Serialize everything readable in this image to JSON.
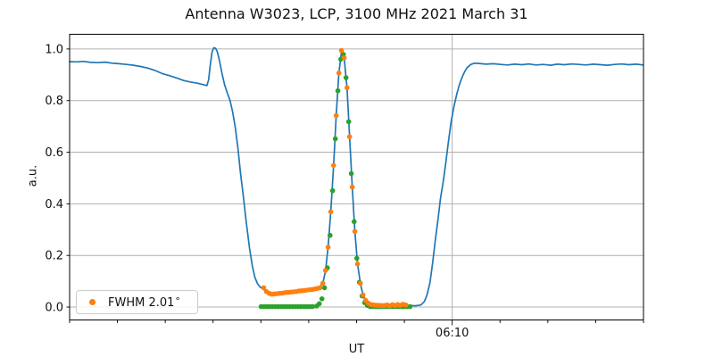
{
  "title": "Antenna W3023, LCP, 3100 MHz 2021 March 31",
  "legend": {
    "label_text": "FWHM 2.01",
    "degree": "°",
    "full_label": "FWHM 2.01°",
    "marker_color": "#ff7f0e"
  },
  "colors": {
    "line": "#1f77b4",
    "data_dots": "#ff7f0e",
    "fit_dots": "#2ca02c",
    "grid": "#b0b0b0",
    "spine": "#000000"
  },
  "chart_data": {
    "type": "line",
    "title": "Antenna W3023, LCP, 3100 MHz 2021 March 31",
    "xlabel": "UT",
    "ylabel": "a.u.",
    "x_unit": "minutes relative to 06:10 UT",
    "xlim": [
      -16.0,
      8.0
    ],
    "ylim": [
      -0.05,
      1.057
    ],
    "grid": true,
    "x_major_tick": {
      "label": "06:10",
      "x": 0
    },
    "x_minor_ticks": [
      -16,
      -14,
      -12,
      -10,
      -8,
      -6,
      -4,
      -2,
      0,
      2,
      4,
      6,
      8
    ],
    "y_ticks": [
      0.0,
      0.2,
      0.4,
      0.6,
      0.8,
      1.0
    ],
    "legend_entry": {
      "series": "data",
      "label": "FWHM 2.01°"
    },
    "series": [
      {
        "name": "antenna-response",
        "type": "line",
        "color": "#1f77b4",
        "x": [
          -16.0,
          -15.71,
          -15.42,
          -15.12,
          -14.82,
          -14.52,
          -14.22,
          -13.92,
          -13.62,
          -13.33,
          -13.03,
          -12.73,
          -12.43,
          -12.13,
          -11.83,
          -11.53,
          -11.23,
          -10.94,
          -10.64,
          -10.41,
          -10.26,
          -10.19,
          -10.12,
          -10.04,
          -9.97,
          -9.89,
          -9.82,
          -9.74,
          -9.63,
          -9.52,
          -9.41,
          -9.29,
          -9.18,
          -9.07,
          -8.96,
          -8.85,
          -8.73,
          -8.62,
          -8.47,
          -8.36,
          -8.25,
          -8.14,
          -8.03,
          -7.88,
          -7.73,
          -7.54,
          -7.28,
          -6.98,
          -6.68,
          -6.38,
          -6.08,
          -5.79,
          -5.56,
          -5.41,
          -5.3,
          -5.19,
          -5.08,
          -4.96,
          -4.85,
          -4.74,
          -4.63,
          -4.59,
          -4.52,
          -4.4,
          -4.29,
          -4.18,
          -4.07,
          -3.96,
          -3.84,
          -3.73,
          -3.62,
          -3.47,
          -3.25,
          -2.95,
          -2.65,
          -2.35,
          -2.05,
          -1.75,
          -1.53,
          -1.31,
          -1.16,
          -1.05,
          -0.93,
          -0.82,
          -0.71,
          -0.6,
          -0.49,
          -0.37,
          -0.26,
          -0.15,
          -0.04,
          0.07,
          0.19,
          0.3,
          0.41,
          0.52,
          0.63,
          0.78,
          0.93,
          1.12,
          1.42,
          1.72,
          2.02,
          2.31,
          2.61,
          2.91,
          3.21,
          3.51,
          3.81,
          4.11,
          4.4,
          4.7,
          5.0,
          5.3,
          5.6,
          5.9,
          6.2,
          6.49,
          6.79,
          7.09,
          7.39,
          7.69,
          7.99
        ],
        "y": [
          0.951,
          0.95,
          0.952,
          0.948,
          0.947,
          0.949,
          0.945,
          0.943,
          0.94,
          0.937,
          0.932,
          0.926,
          0.917,
          0.905,
          0.897,
          0.888,
          0.878,
          0.872,
          0.867,
          0.862,
          0.858,
          0.88,
          0.935,
          0.99,
          1.005,
          1.002,
          0.988,
          0.958,
          0.906,
          0.862,
          0.83,
          0.8,
          0.755,
          0.695,
          0.615,
          0.515,
          0.425,
          0.335,
          0.225,
          0.16,
          0.115,
          0.09,
          0.078,
          0.068,
          0.056,
          0.05,
          0.053,
          0.056,
          0.059,
          0.062,
          0.066,
          0.07,
          0.076,
          0.092,
          0.14,
          0.232,
          0.369,
          0.549,
          0.742,
          0.907,
          0.99,
          0.998,
          0.966,
          0.85,
          0.66,
          0.465,
          0.293,
          0.167,
          0.092,
          0.047,
          0.026,
          0.013,
          0.008,
          0.005,
          0.004,
          0.004,
          0.005,
          0.006,
          0.005,
          0.008,
          0.022,
          0.048,
          0.095,
          0.17,
          0.255,
          0.335,
          0.42,
          0.49,
          0.565,
          0.645,
          0.72,
          0.775,
          0.825,
          0.862,
          0.89,
          0.912,
          0.928,
          0.94,
          0.945,
          0.944,
          0.941,
          0.943,
          0.94,
          0.938,
          0.941,
          0.939,
          0.942,
          0.938,
          0.94,
          0.937,
          0.941,
          0.939,
          0.942,
          0.94,
          0.938,
          0.941,
          0.939,
          0.937,
          0.94,
          0.942,
          0.939,
          0.941,
          0.938
        ]
      },
      {
        "name": "gaussian-fit",
        "type": "scatter",
        "color": "#2ca02c",
        "x": [
          -7.99,
          -7.87,
          -7.75,
          -7.63,
          -7.51,
          -7.39,
          -7.27,
          -7.15,
          -7.03,
          -6.91,
          -6.8,
          -6.68,
          -6.56,
          -6.44,
          -6.32,
          -6.2,
          -6.08,
          -5.96,
          -5.84,
          -5.67,
          -5.56,
          -5.45,
          -5.34,
          -5.22,
          -5.11,
          -5.0,
          -4.89,
          -4.78,
          -4.66,
          -4.55,
          -4.44,
          -4.33,
          -4.22,
          -4.1,
          -3.99,
          -3.88,
          -3.77,
          -3.66,
          -3.55,
          -3.43,
          -3.31,
          -3.19,
          -3.07,
          -2.96,
          -2.84,
          -2.72,
          -2.6,
          -2.48,
          -2.36,
          -2.24,
          -2.12,
          -2.0,
          -1.88,
          -1.76
        ],
        "y": [
          0.002,
          0.002,
          0.002,
          0.002,
          0.002,
          0.002,
          0.002,
          0.002,
          0.002,
          0.002,
          0.002,
          0.002,
          0.002,
          0.002,
          0.002,
          0.002,
          0.002,
          0.002,
          0.002,
          0.004,
          0.013,
          0.032,
          0.075,
          0.152,
          0.278,
          0.451,
          0.652,
          0.838,
          0.96,
          0.979,
          0.889,
          0.718,
          0.517,
          0.331,
          0.189,
          0.096,
          0.043,
          0.017,
          0.006,
          0.002,
          0.002,
          0.002,
          0.002,
          0.002,
          0.002,
          0.002,
          0.002,
          0.002,
          0.002,
          0.002,
          0.002,
          0.002,
          0.002,
          0.002
        ]
      },
      {
        "name": "data",
        "type": "scatter",
        "color": "#ff7f0e",
        "x": [
          -7.88,
          -7.77,
          -7.65,
          -7.54,
          -7.43,
          -7.32,
          -7.21,
          -7.09,
          -6.98,
          -6.87,
          -6.76,
          -6.65,
          -6.53,
          -6.42,
          -6.31,
          -6.2,
          -6.09,
          -5.97,
          -5.86,
          -5.75,
          -5.64,
          -5.53,
          -5.41,
          -5.3,
          -5.19,
          -5.08,
          -4.96,
          -4.85,
          -4.74,
          -4.63,
          -4.52,
          -4.4,
          -4.29,
          -4.18,
          -4.07,
          -3.96,
          -3.84,
          -3.73,
          -3.62,
          -3.51,
          -3.4,
          -3.28,
          -3.17,
          -3.06,
          -2.95,
          -2.84,
          -2.72,
          -2.61,
          -2.5,
          -2.39,
          -2.28,
          -2.17,
          -2.05,
          -1.94
        ],
        "y": [
          0.075,
          0.06,
          0.053,
          0.05,
          0.051,
          0.052,
          0.053,
          0.054,
          0.056,
          0.057,
          0.058,
          0.059,
          0.06,
          0.062,
          0.063,
          0.064,
          0.066,
          0.067,
          0.068,
          0.07,
          0.072,
          0.075,
          0.092,
          0.142,
          0.232,
          0.369,
          0.549,
          0.742,
          0.907,
          0.994,
          0.966,
          0.85,
          0.66,
          0.465,
          0.293,
          0.167,
          0.092,
          0.047,
          0.026,
          0.015,
          0.01,
          0.008,
          0.007,
          0.007,
          0.006,
          0.006,
          0.008,
          0.005,
          0.009,
          0.006,
          0.01,
          0.007,
          0.011,
          0.008
        ]
      }
    ]
  }
}
